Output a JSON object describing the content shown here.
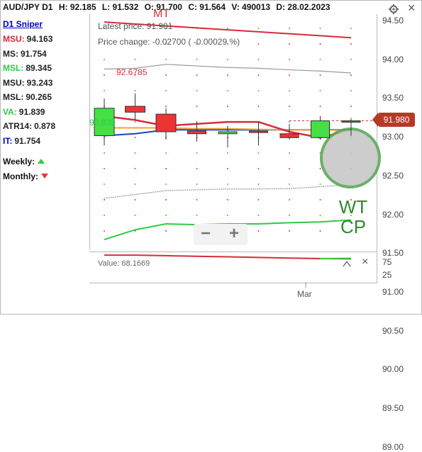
{
  "header": {
    "symbol": "AUD/JPY D1",
    "high": "H: 92.185",
    "low": "L: 91.532",
    "open": "O: 91.700",
    "close": "C: 91.564",
    "volume": "V: 490013",
    "date": "D: 28.02.2023"
  },
  "panel": {
    "title": "D1 Sniper",
    "indicators": [
      {
        "key": "MSU:",
        "value": "94.163",
        "color": "#d62c3a"
      },
      {
        "key": "MS:",
        "value": "91.754",
        "color": "#222222"
      },
      {
        "key": "MSL:",
        "value": "89.345",
        "color": "#2ecc40"
      },
      {
        "key": "MSU:",
        "value": "93.243",
        "color": "#222222"
      },
      {
        "key": "MSL:",
        "value": "90.265",
        "color": "#222222"
      },
      {
        "key": "VA:",
        "value": "91.839",
        "color": "#2ecc40"
      },
      {
        "key": "ATR14:",
        "value": "0.878",
        "color": "#222222"
      },
      {
        "key": "IT:",
        "value": "91.754",
        "color": "#0000cc"
      }
    ],
    "weekly": "Weekly:",
    "monthly": "Monthly:",
    "weekly_direction": "up",
    "monthly_direction": "down"
  },
  "chart_overlay": {
    "mt_label": "MT",
    "latest_price": "Latest price: 91.981",
    "price_change": "Price change: -0.02700 ( -0.00029 %)",
    "high_label": "92.6785",
    "low_label": "90.839",
    "wt_label": "WT",
    "cp_label": "CP",
    "current_price": "91.980"
  },
  "y_axis": {
    "ticks": [
      "94.50",
      "94.00",
      "93.50",
      "93.00",
      "92.50",
      "92.00",
      "91.50",
      "91.00",
      "90.50",
      "90.00",
      "89.50",
      "89.00"
    ]
  },
  "subchart": {
    "value_label": "Value: 68.1669",
    "ticks": [
      "75",
      "25"
    ]
  },
  "x_axis": {
    "month_label": "Mar"
  },
  "zoom": {
    "minus": "−",
    "plus": "+"
  },
  "colors": {
    "bull": "#44e044",
    "bear": "#ee3333",
    "msu_line": "#d62c3a",
    "msl_line": "#2ecc40",
    "it_line": "#1f3fbf",
    "va_line": "#f0a040",
    "band_line": "#999999",
    "circle_fill": "#c8c8c8",
    "circle_stroke": "#5aa85a"
  },
  "chart_data": {
    "type": "candlestick",
    "ylim": [
      88.7,
      94.7
    ],
    "candles": [
      {
        "open": 91.6,
        "high": 92.55,
        "low": 91.35,
        "close": 92.3,
        "bull": true
      },
      {
        "open": 92.35,
        "high": 92.68,
        "low": 92.0,
        "close": 92.2,
        "bull": false
      },
      {
        "open": 92.15,
        "high": 92.3,
        "low": 91.5,
        "close": 91.7,
        "bull": false
      },
      {
        "open": 91.72,
        "high": 91.95,
        "low": 91.45,
        "close": 91.65,
        "bull": false
      },
      {
        "open": 91.65,
        "high": 91.85,
        "low": 91.3,
        "close": 91.7,
        "bull": true
      },
      {
        "open": 91.72,
        "high": 91.95,
        "low": 91.35,
        "close": 91.68,
        "bull": false
      },
      {
        "open": 91.65,
        "high": 91.9,
        "low": 91.5,
        "close": 91.55,
        "bull": false
      },
      {
        "open": 91.55,
        "high": 92.1,
        "low": 91.5,
        "close": 91.98,
        "bull": true
      },
      {
        "open": 91.98,
        "high": 92.05,
        "low": 91.6,
        "close": 91.98,
        "bull": false
      }
    ],
    "lines": {
      "msu": [
        94.5,
        94.45,
        94.4,
        94.35,
        94.3,
        94.25,
        94.2,
        94.15,
        94.1
      ],
      "upper_band": [
        93.3,
        93.32,
        93.42,
        93.38,
        93.34,
        93.32,
        93.28,
        93.25,
        93.2
      ],
      "red_ma": [
        92.1,
        92.0,
        91.85,
        91.9,
        91.95,
        91.95,
        91.7,
        91.55,
        91.75
      ],
      "it": [
        91.6,
        91.65,
        91.75,
        91.75,
        91.75,
        91.75,
        91.75,
        91.75,
        91.75
      ],
      "va": [
        91.8,
        91.8,
        91.8,
        91.78,
        91.78,
        91.76,
        91.75,
        91.74,
        91.74
      ],
      "lower_band": [
        90.0,
        90.1,
        90.2,
        90.22,
        90.24,
        90.24,
        90.25,
        90.3,
        90.35
      ],
      "msl": [
        88.95,
        89.2,
        89.35,
        89.33,
        89.35,
        89.35,
        89.38,
        89.4,
        89.45
      ]
    },
    "subchart_lines": {
      "red": [
        90,
        90,
        88,
        86,
        84,
        82,
        80,
        78,
        77
      ],
      "green_segment": [
        78,
        79
      ]
    },
    "subchart_ylim": [
      0,
      100
    ]
  }
}
